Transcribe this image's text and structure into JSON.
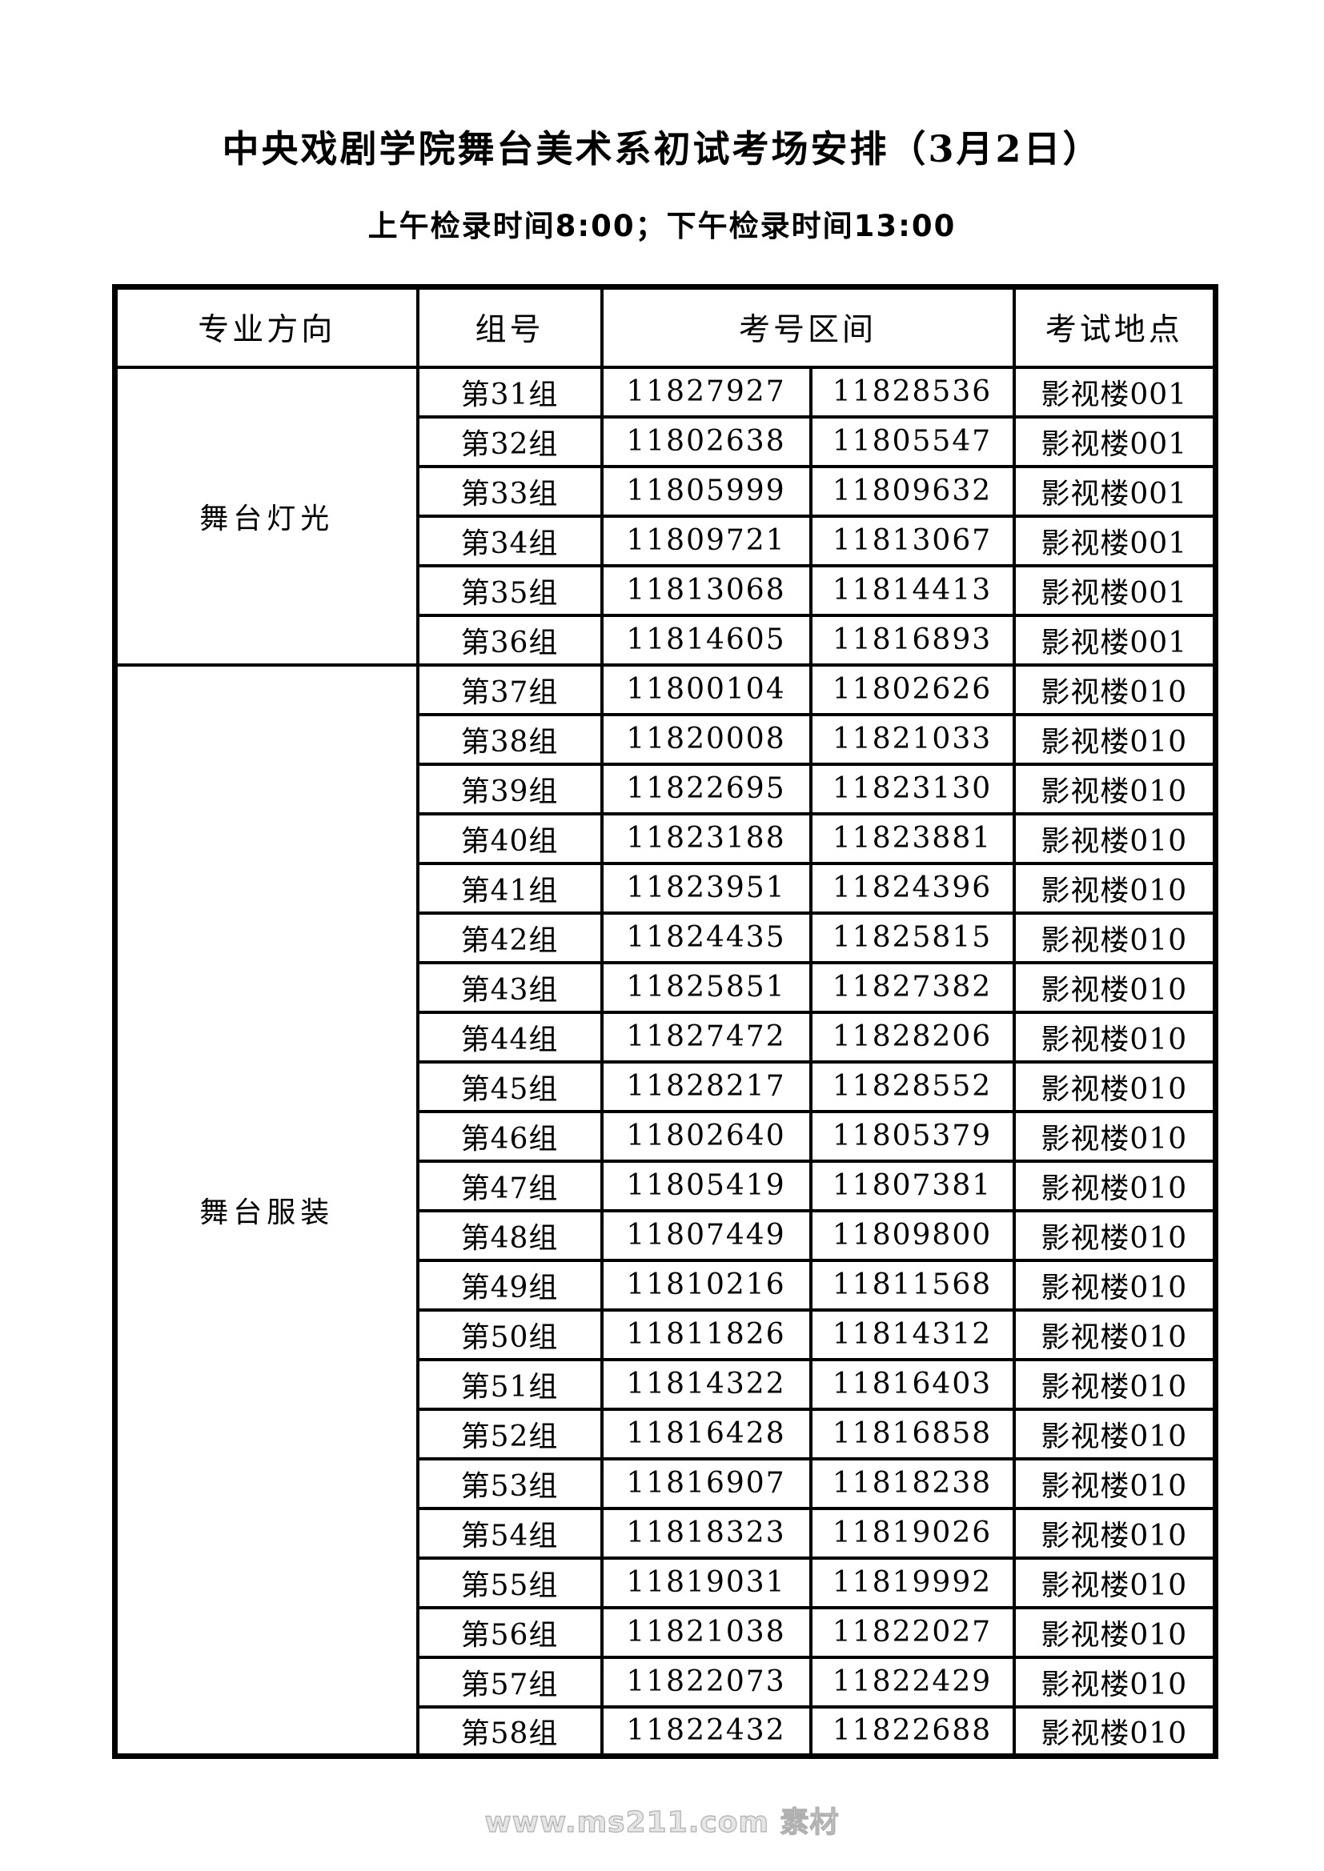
{
  "page": {
    "title": "中央戏剧学院舞台美术系初试考场安排（3月2日）",
    "subtitle": "上午检录时间8:00；下午检录时间13:00",
    "watermark": "www.ms211.com 素材"
  },
  "colors": {
    "text": "#000000",
    "border": "#000000",
    "background": "#ffffff",
    "watermark": "#b0b0b0"
  },
  "table": {
    "headers": {
      "major": "专业方向",
      "group": "组号",
      "range": "考号区间",
      "location": "考试地点"
    },
    "sections": [
      {
        "major": "舞台灯光",
        "rows": [
          {
            "group": "第31组",
            "start": "11827927",
            "end": "11828536",
            "location": "影视楼001"
          },
          {
            "group": "第32组",
            "start": "11802638",
            "end": "11805547",
            "location": "影视楼001"
          },
          {
            "group": "第33组",
            "start": "11805999",
            "end": "11809632",
            "location": "影视楼001"
          },
          {
            "group": "第34组",
            "start": "11809721",
            "end": "11813067",
            "location": "影视楼001"
          },
          {
            "group": "第35组",
            "start": "11813068",
            "end": "11814413",
            "location": "影视楼001"
          },
          {
            "group": "第36组",
            "start": "11814605",
            "end": "11816893",
            "location": "影视楼001"
          }
        ]
      },
      {
        "major": "舞台服装",
        "rows": [
          {
            "group": "第37组",
            "start": "11800104",
            "end": "11802626",
            "location": "影视楼010"
          },
          {
            "group": "第38组",
            "start": "11820008",
            "end": "11821033",
            "location": "影视楼010"
          },
          {
            "group": "第39组",
            "start": "11822695",
            "end": "11823130",
            "location": "影视楼010"
          },
          {
            "group": "第40组",
            "start": "11823188",
            "end": "11823881",
            "location": "影视楼010"
          },
          {
            "group": "第41组",
            "start": "11823951",
            "end": "11824396",
            "location": "影视楼010"
          },
          {
            "group": "第42组",
            "start": "11824435",
            "end": "11825815",
            "location": "影视楼010"
          },
          {
            "group": "第43组",
            "start": "11825851",
            "end": "11827382",
            "location": "影视楼010"
          },
          {
            "group": "第44组",
            "start": "11827472",
            "end": "11828206",
            "location": "影视楼010"
          },
          {
            "group": "第45组",
            "start": "11828217",
            "end": "11828552",
            "location": "影视楼010"
          },
          {
            "group": "第46组",
            "start": "11802640",
            "end": "11805379",
            "location": "影视楼010"
          },
          {
            "group": "第47组",
            "start": "11805419",
            "end": "11807381",
            "location": "影视楼010"
          },
          {
            "group": "第48组",
            "start": "11807449",
            "end": "11809800",
            "location": "影视楼010"
          },
          {
            "group": "第49组",
            "start": "11810216",
            "end": "11811568",
            "location": "影视楼010"
          },
          {
            "group": "第50组",
            "start": "11811826",
            "end": "11814312",
            "location": "影视楼010"
          },
          {
            "group": "第51组",
            "start": "11814322",
            "end": "11816403",
            "location": "影视楼010"
          },
          {
            "group": "第52组",
            "start": "11816428",
            "end": "11816858",
            "location": "影视楼010"
          },
          {
            "group": "第53组",
            "start": "11816907",
            "end": "11818238",
            "location": "影视楼010"
          },
          {
            "group": "第54组",
            "start": "11818323",
            "end": "11819026",
            "location": "影视楼010"
          },
          {
            "group": "第55组",
            "start": "11819031",
            "end": "11819992",
            "location": "影视楼010"
          },
          {
            "group": "第56组",
            "start": "11821038",
            "end": "11822027",
            "location": "影视楼010"
          },
          {
            "group": "第57组",
            "start": "11822073",
            "end": "11822429",
            "location": "影视楼010"
          },
          {
            "group": "第58组",
            "start": "11822432",
            "end": "11822688",
            "location": "影视楼010"
          }
        ]
      }
    ]
  }
}
